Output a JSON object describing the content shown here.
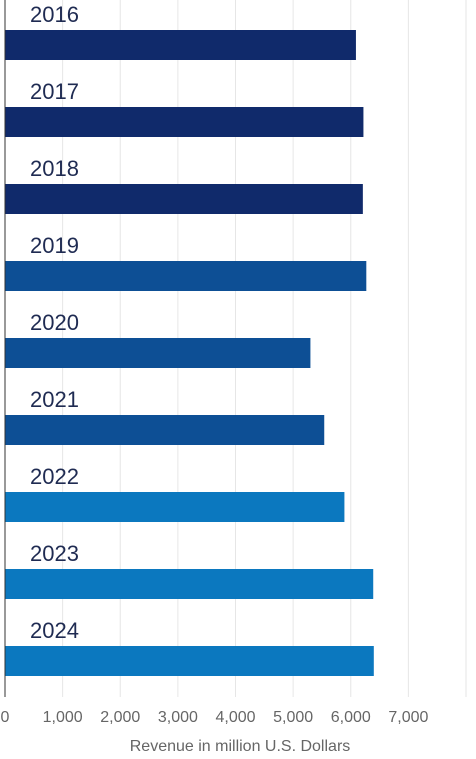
{
  "chart_data": {
    "type": "bar",
    "orientation": "horizontal",
    "categories": [
      "2016",
      "2017",
      "2018",
      "2019",
      "2020",
      "2021",
      "2022",
      "2023",
      "2024"
    ],
    "values": [
      6090,
      6220,
      6210,
      6270,
      5300,
      5540,
      5890,
      6390,
      6400
    ],
    "xlabel": "Revenue in million U.S. Dollars",
    "ylabel": "",
    "xlim": [
      0,
      8000
    ],
    "x_ticks": [
      0,
      1000,
      2000,
      3000,
      4000,
      5000,
      6000,
      7000
    ],
    "x_tick_labels": [
      "0",
      "1,000",
      "2,000",
      "3,000",
      "4,000",
      "5,000",
      "6,000",
      "7,000"
    ],
    "grid": true,
    "legend": "none",
    "bar_colors": [
      "#102a6b",
      "#102a6b",
      "#102a6b",
      "#0d4f95",
      "#0d4f95",
      "#0d4f95",
      "#0b78bf",
      "#0b78bf",
      "#0b78bf"
    ]
  }
}
